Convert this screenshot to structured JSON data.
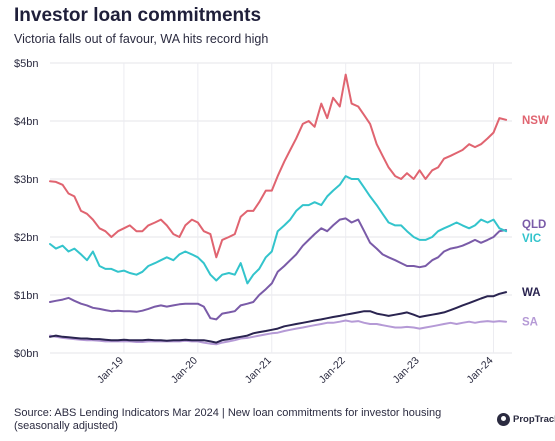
{
  "chart_data": {
    "type": "line",
    "title": "Investor loan commitments",
    "subtitle": "Victoria falls out of favour, WA hits record high",
    "xlabel": "",
    "ylabel": "",
    "ylim": [
      0,
      5
    ],
    "y_unit": "$bn",
    "yticks": [
      0,
      1,
      2,
      3,
      4,
      5
    ],
    "ytick_labels": [
      "$0bn",
      "$1bn",
      "$2bn",
      "$3bn",
      "$4bn",
      "$5bn"
    ],
    "xlim": [
      2018.0,
      2024.25
    ],
    "xticks": [
      2019.0,
      2020.0,
      2021.0,
      2022.0,
      2023.0,
      2024.0
    ],
    "xtick_labels": [
      "Jan-19",
      "Jan-20",
      "Jan-21",
      "Jan-22",
      "Jan-23",
      "Jan-24"
    ],
    "grid": true,
    "legend": "labels at line ends",
    "x": [
      2018.0,
      2018.08,
      2018.17,
      2018.25,
      2018.33,
      2018.42,
      2018.5,
      2018.58,
      2018.67,
      2018.75,
      2018.83,
      2018.92,
      2019.0,
      2019.08,
      2019.17,
      2019.25,
      2019.33,
      2019.42,
      2019.5,
      2019.58,
      2019.67,
      2019.75,
      2019.83,
      2019.92,
      2020.0,
      2020.08,
      2020.17,
      2020.25,
      2020.33,
      2020.42,
      2020.5,
      2020.58,
      2020.67,
      2020.75,
      2020.83,
      2020.92,
      2021.0,
      2021.08,
      2021.17,
      2021.25,
      2021.33,
      2021.42,
      2021.5,
      2021.58,
      2021.67,
      2021.75,
      2021.83,
      2021.92,
      2022.0,
      2022.08,
      2022.17,
      2022.25,
      2022.33,
      2022.42,
      2022.5,
      2022.58,
      2022.67,
      2022.75,
      2022.83,
      2022.92,
      2023.0,
      2023.08,
      2023.17,
      2023.25,
      2023.33,
      2023.42,
      2023.5,
      2023.58,
      2023.67,
      2023.75,
      2023.83,
      2023.92,
      2024.0,
      2024.08,
      2024.17
    ],
    "series": [
      {
        "name": "NSW",
        "color": "#e06470",
        "values": [
          2.96,
          2.95,
          2.9,
          2.75,
          2.7,
          2.45,
          2.4,
          2.3,
          2.15,
          2.1,
          2.0,
          2.1,
          2.15,
          2.2,
          2.1,
          2.1,
          2.2,
          2.25,
          2.3,
          2.2,
          2.05,
          2.0,
          2.2,
          2.3,
          2.25,
          2.1,
          2.05,
          1.65,
          1.95,
          2.0,
          2.05,
          2.35,
          2.45,
          2.45,
          2.6,
          2.8,
          2.8,
          3.05,
          3.3,
          3.5,
          3.7,
          3.95,
          4.0,
          3.9,
          4.3,
          4.05,
          4.4,
          4.25,
          4.8,
          4.3,
          4.25,
          4.1,
          3.95,
          3.6,
          3.4,
          3.2,
          3.05,
          3.0,
          3.1,
          3.0,
          3.15,
          3.0,
          3.15,
          3.2,
          3.35,
          3.4,
          3.45,
          3.5,
          3.6,
          3.55,
          3.6,
          3.7,
          3.8,
          4.05,
          4.02
        ]
      },
      {
        "name": "VIC",
        "color": "#33c4cc",
        "values": [
          1.88,
          1.8,
          1.85,
          1.75,
          1.8,
          1.7,
          1.6,
          1.75,
          1.5,
          1.45,
          1.45,
          1.4,
          1.42,
          1.38,
          1.35,
          1.4,
          1.5,
          1.55,
          1.6,
          1.65,
          1.6,
          1.7,
          1.75,
          1.7,
          1.65,
          1.55,
          1.35,
          1.25,
          1.35,
          1.38,
          1.35,
          1.55,
          1.2,
          1.35,
          1.45,
          1.65,
          1.75,
          2.1,
          2.2,
          2.3,
          2.45,
          2.55,
          2.55,
          2.6,
          2.55,
          2.7,
          2.8,
          2.9,
          3.05,
          3.0,
          3.0,
          2.85,
          2.7,
          2.55,
          2.4,
          2.25,
          2.2,
          2.2,
          2.1,
          2.0,
          1.95,
          1.95,
          2.0,
          2.1,
          2.15,
          2.2,
          2.25,
          2.2,
          2.15,
          2.2,
          2.3,
          2.25,
          2.3,
          2.15,
          2.1
        ]
      },
      {
        "name": "QLD",
        "color": "#7a5ba8",
        "values": [
          0.88,
          0.9,
          0.92,
          0.95,
          0.9,
          0.85,
          0.82,
          0.78,
          0.76,
          0.74,
          0.72,
          0.73,
          0.72,
          0.72,
          0.71,
          0.73,
          0.76,
          0.8,
          0.82,
          0.8,
          0.82,
          0.84,
          0.85,
          0.85,
          0.85,
          0.8,
          0.6,
          0.58,
          0.68,
          0.7,
          0.72,
          0.82,
          0.85,
          0.88,
          1.0,
          1.1,
          1.2,
          1.4,
          1.5,
          1.6,
          1.7,
          1.85,
          1.95,
          2.05,
          2.15,
          2.1,
          2.2,
          2.3,
          2.32,
          2.25,
          2.3,
          2.1,
          1.9,
          1.8,
          1.7,
          1.65,
          1.6,
          1.55,
          1.5,
          1.5,
          1.48,
          1.5,
          1.6,
          1.65,
          1.75,
          1.8,
          1.82,
          1.85,
          1.9,
          1.95,
          1.9,
          1.95,
          2.0,
          2.1,
          2.12
        ]
      },
      {
        "name": "WA",
        "color": "#2a2450",
        "values": [
          0.28,
          0.3,
          0.28,
          0.27,
          0.26,
          0.25,
          0.25,
          0.24,
          0.24,
          0.23,
          0.22,
          0.22,
          0.23,
          0.22,
          0.22,
          0.22,
          0.23,
          0.22,
          0.22,
          0.21,
          0.22,
          0.22,
          0.23,
          0.22,
          0.22,
          0.22,
          0.2,
          0.18,
          0.22,
          0.24,
          0.26,
          0.28,
          0.3,
          0.34,
          0.36,
          0.38,
          0.4,
          0.42,
          0.46,
          0.48,
          0.5,
          0.52,
          0.54,
          0.56,
          0.58,
          0.6,
          0.62,
          0.64,
          0.66,
          0.68,
          0.7,
          0.72,
          0.72,
          0.68,
          0.66,
          0.64,
          0.66,
          0.68,
          0.7,
          0.66,
          0.62,
          0.64,
          0.66,
          0.68,
          0.7,
          0.74,
          0.78,
          0.82,
          0.86,
          0.9,
          0.94,
          0.98,
          0.98,
          1.02,
          1.05
        ]
      },
      {
        "name": "SA",
        "color": "#b59ad6",
        "values": [
          0.3,
          0.28,
          0.26,
          0.25,
          0.24,
          0.23,
          0.22,
          0.22,
          0.21,
          0.2,
          0.2,
          0.2,
          0.2,
          0.2,
          0.19,
          0.19,
          0.2,
          0.2,
          0.2,
          0.2,
          0.2,
          0.2,
          0.21,
          0.2,
          0.2,
          0.18,
          0.16,
          0.15,
          0.18,
          0.2,
          0.22,
          0.25,
          0.26,
          0.28,
          0.3,
          0.32,
          0.34,
          0.35,
          0.38,
          0.4,
          0.42,
          0.44,
          0.46,
          0.48,
          0.5,
          0.52,
          0.52,
          0.54,
          0.56,
          0.54,
          0.55,
          0.52,
          0.5,
          0.5,
          0.48,
          0.46,
          0.44,
          0.44,
          0.45,
          0.44,
          0.42,
          0.44,
          0.46,
          0.48,
          0.5,
          0.52,
          0.5,
          0.52,
          0.54,
          0.52,
          0.54,
          0.55,
          0.54,
          0.55,
          0.54
        ]
      }
    ],
    "end_labels": [
      {
        "name": "NSW",
        "color": "#e06470",
        "value": 4.02
      },
      {
        "name": "QLD",
        "color": "#7a5ba8",
        "value": 2.22
      },
      {
        "name": "VIC",
        "color": "#33c4cc",
        "value": 1.98
      },
      {
        "name": "WA",
        "color": "#2a2450",
        "value": 1.05
      },
      {
        "name": "SA",
        "color": "#b59ad6",
        "value": 0.54
      }
    ]
  },
  "footer": {
    "source": "Source: ABS Lending Indicators Mar 2024 | New loan commitments for investor housing (seasonally adjusted)",
    "brand": "PropTrack"
  }
}
